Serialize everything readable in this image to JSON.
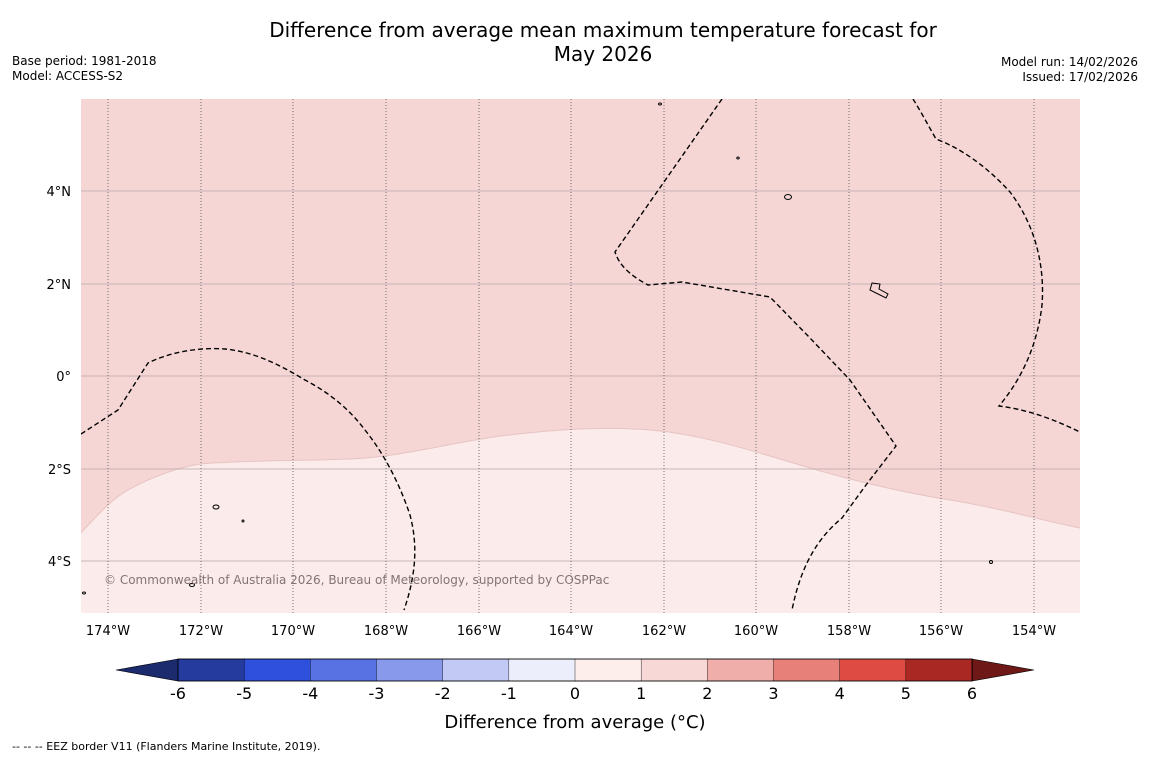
{
  "title_line1": "Difference from average mean maximum temperature forecast for",
  "title_line2": "May 2026",
  "base_period": "Base period: 1981-2018",
  "model": "Model: ACCESS-S2",
  "model_run": "Model run: 14/02/2026",
  "issued": "Issued: 17/02/2026",
  "copyright": "© Commonwealth of Australia 2026, Bureau of Meteorology, supported by COSPPac",
  "lon_ticks": [
    "174°W",
    "172°W",
    "170°W",
    "168°W",
    "166°W",
    "164°W",
    "162°W",
    "160°W",
    "158°W",
    "156°W",
    "154°W"
  ],
  "lat_ticks": [
    "4°N",
    "2°N",
    "0°",
    "2°S",
    "4°S"
  ],
  "colorbar": {
    "label": "Difference from average (°C)",
    "tick_labels": [
      "-6",
      "-5",
      "-4",
      "-3",
      "-2",
      "-1",
      "0",
      "1",
      "2",
      "3",
      "4",
      "5",
      "6"
    ],
    "colors": [
      "#263b9e",
      "#2f4fdd",
      "#5872e3",
      "#8898ea",
      "#c2c9f5",
      "#eceefb",
      "#fdeeec",
      "#f8d8d6",
      "#f0aeab",
      "#e8807a",
      "#dd4b43",
      "#aa2824"
    ],
    "under_color": "#1c2a6e",
    "over_color": "#6e1917"
  },
  "colors": {
    "warm_1_2": "#f5d6d5",
    "warm_0_1": "#fbebea"
  },
  "footer": "--  --  -- EEZ border V11 (Flanders Marine Institute, 2019)."
}
